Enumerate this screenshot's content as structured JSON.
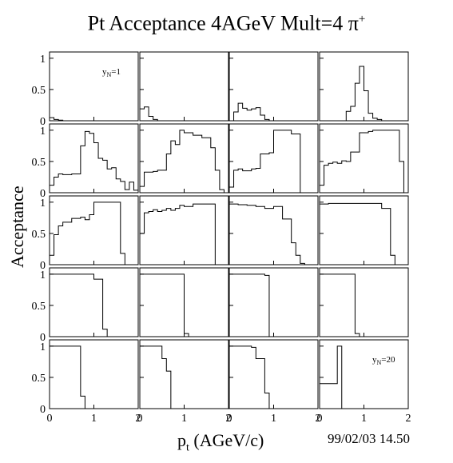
{
  "title": {
    "text": "Pt Acceptance 4AGeV Mult=4 ",
    "particle": "π",
    "charge": "+"
  },
  "xlabel": {
    "symbol": "p",
    "subscript": "t",
    "unit": " (AGeV/c)"
  },
  "ylabel": "Acceptance",
  "timestamp": "99/02/03   14.50",
  "chart_data": {
    "type": "histogram",
    "layout": {
      "rows": 5,
      "cols": 4
    },
    "xlim": [
      0,
      2
    ],
    "ylim": [
      0,
      1.1
    ],
    "x_ticks": [
      "0",
      "1",
      "2"
    ],
    "y_ticks": [
      "0",
      "0.5",
      "1"
    ],
    "bin_width": 0.1,
    "panel_labels": [
      {
        "panel": 0,
        "text": "y",
        "sub": "N",
        "tail": "=1"
      },
      {
        "panel": 19,
        "text": "y",
        "sub": "N",
        "tail": "=20"
      }
    ],
    "panels": [
      [
        0.05,
        0.02,
        0.01,
        0,
        0,
        0,
        0,
        0,
        0,
        0,
        0,
        0,
        0,
        0,
        0,
        0,
        0,
        0,
        0,
        0
      ],
      [
        0.19,
        0.22,
        0.07,
        0.02,
        0,
        0,
        0,
        0,
        0,
        0,
        0,
        0,
        0,
        0,
        0,
        0,
        0,
        0,
        0,
        0
      ],
      [
        0,
        0.14,
        0.28,
        0.2,
        0.17,
        0.19,
        0.21,
        0.09,
        0.02,
        0,
        0,
        0,
        0,
        0,
        0,
        0,
        0,
        0,
        0,
        0
      ],
      [
        0,
        0,
        0,
        0,
        0,
        0,
        0.15,
        0.23,
        0.6,
        0.87,
        0.48,
        0.12,
        0.04,
        0.02,
        0,
        0,
        0,
        0,
        0,
        0
      ],
      [
        0.12,
        0.25,
        0.3,
        0.29,
        0.29,
        0.3,
        0.3,
        0.75,
        0.98,
        0.95,
        0.8,
        0.55,
        0.52,
        0.38,
        0.4,
        0.22,
        0.18,
        0.05,
        0.17,
        0.04
      ],
      [
        0.1,
        0.33,
        0.33,
        0.34,
        0.36,
        0.36,
        0.62,
        0.83,
        0.77,
        1.0,
        0.96,
        0.96,
        0.92,
        0.92,
        0.88,
        0.88,
        0.72,
        0.36,
        0.05,
        0
      ],
      [
        0.09,
        0.36,
        0.38,
        0.35,
        0.35,
        0.38,
        0.39,
        0.62,
        0.62,
        0.64,
        1.0,
        1.0,
        1.0,
        1.0,
        0.94,
        0.94,
        0,
        0,
        0,
        0
      ],
      [
        0.12,
        0.44,
        0.47,
        0.49,
        0.47,
        0.51,
        0.5,
        0.65,
        0.65,
        0.96,
        0.96,
        0.98,
        1.0,
        1.0,
        1.0,
        1.0,
        1.0,
        1.0,
        0.5,
        0
      ],
      [
        0.15,
        0.48,
        0.62,
        0.68,
        0.68,
        0.74,
        0.74,
        0.76,
        0.72,
        0.8,
        1.0,
        1.0,
        1.0,
        1.0,
        1.0,
        1.0,
        0.18,
        0,
        0,
        0
      ],
      [
        0.5,
        0.83,
        0.85,
        0.88,
        0.85,
        0.87,
        0.9,
        0.87,
        0.9,
        0.95,
        0.93,
        0.93,
        0.97,
        0.97,
        0.97,
        0.97,
        0.97,
        0,
        0,
        0
      ],
      [
        0.97,
        0.97,
        0.96,
        0.96,
        0.95,
        0.95,
        0.93,
        0.93,
        0.9,
        0.9,
        0.93,
        0.93,
        0.73,
        0.73,
        0.35,
        0.15,
        0.02,
        0,
        0,
        0
      ],
      [
        0.97,
        0.97,
        0.98,
        0.98,
        0.98,
        0.98,
        0.98,
        0.98,
        0.98,
        0.98,
        0.98,
        0.98,
        0.98,
        0.98,
        0.9,
        0.9,
        0.15,
        0,
        0,
        0
      ],
      [
        1.0,
        1.0,
        1.0,
        1.0,
        1.0,
        1.0,
        1.0,
        1.0,
        1.0,
        1.0,
        0.92,
        0.92,
        0.12,
        0,
        0,
        0,
        0,
        0,
        0,
        0
      ],
      [
        1.0,
        1.0,
        1.0,
        1.0,
        1.0,
        1.0,
        1.0,
        1.0,
        1.0,
        1.0,
        0.05,
        0,
        0,
        0,
        0,
        0,
        0,
        0,
        0,
        0
      ],
      [
        1.0,
        1.0,
        1.0,
        1.0,
        1.0,
        1.0,
        1.0,
        1.0,
        0.98,
        0,
        0,
        0,
        0,
        0,
        0,
        0,
        0,
        0,
        0,
        0
      ],
      [
        1.0,
        1.0,
        1.0,
        1.0,
        1.0,
        1.0,
        1.0,
        1.0,
        0.05,
        0,
        0,
        0,
        0,
        0,
        0,
        0,
        0,
        0,
        0,
        0
      ],
      [
        1.0,
        1.0,
        1.0,
        1.0,
        1.0,
        1.0,
        1.0,
        0.2,
        0,
        0,
        0,
        0,
        0,
        0,
        0,
        0,
        0,
        0,
        0,
        0
      ],
      [
        1.0,
        1.0,
        1.0,
        1.0,
        1.0,
        0.8,
        0.6,
        0,
        0,
        0,
        0,
        0,
        0,
        0,
        0,
        0,
        0,
        0,
        0,
        0
      ],
      [
        1.0,
        1.0,
        1.0,
        1.0,
        1.0,
        0.98,
        0.8,
        0.8,
        0.25,
        0,
        0,
        0,
        0,
        0,
        0,
        0,
        0,
        0,
        0,
        0
      ],
      [
        0.4,
        0.4,
        0.4,
        0.4,
        1.0,
        0,
        0,
        0,
        0,
        0,
        0,
        0,
        0,
        0,
        0,
        0,
        0,
        0,
        0,
        0
      ]
    ]
  }
}
